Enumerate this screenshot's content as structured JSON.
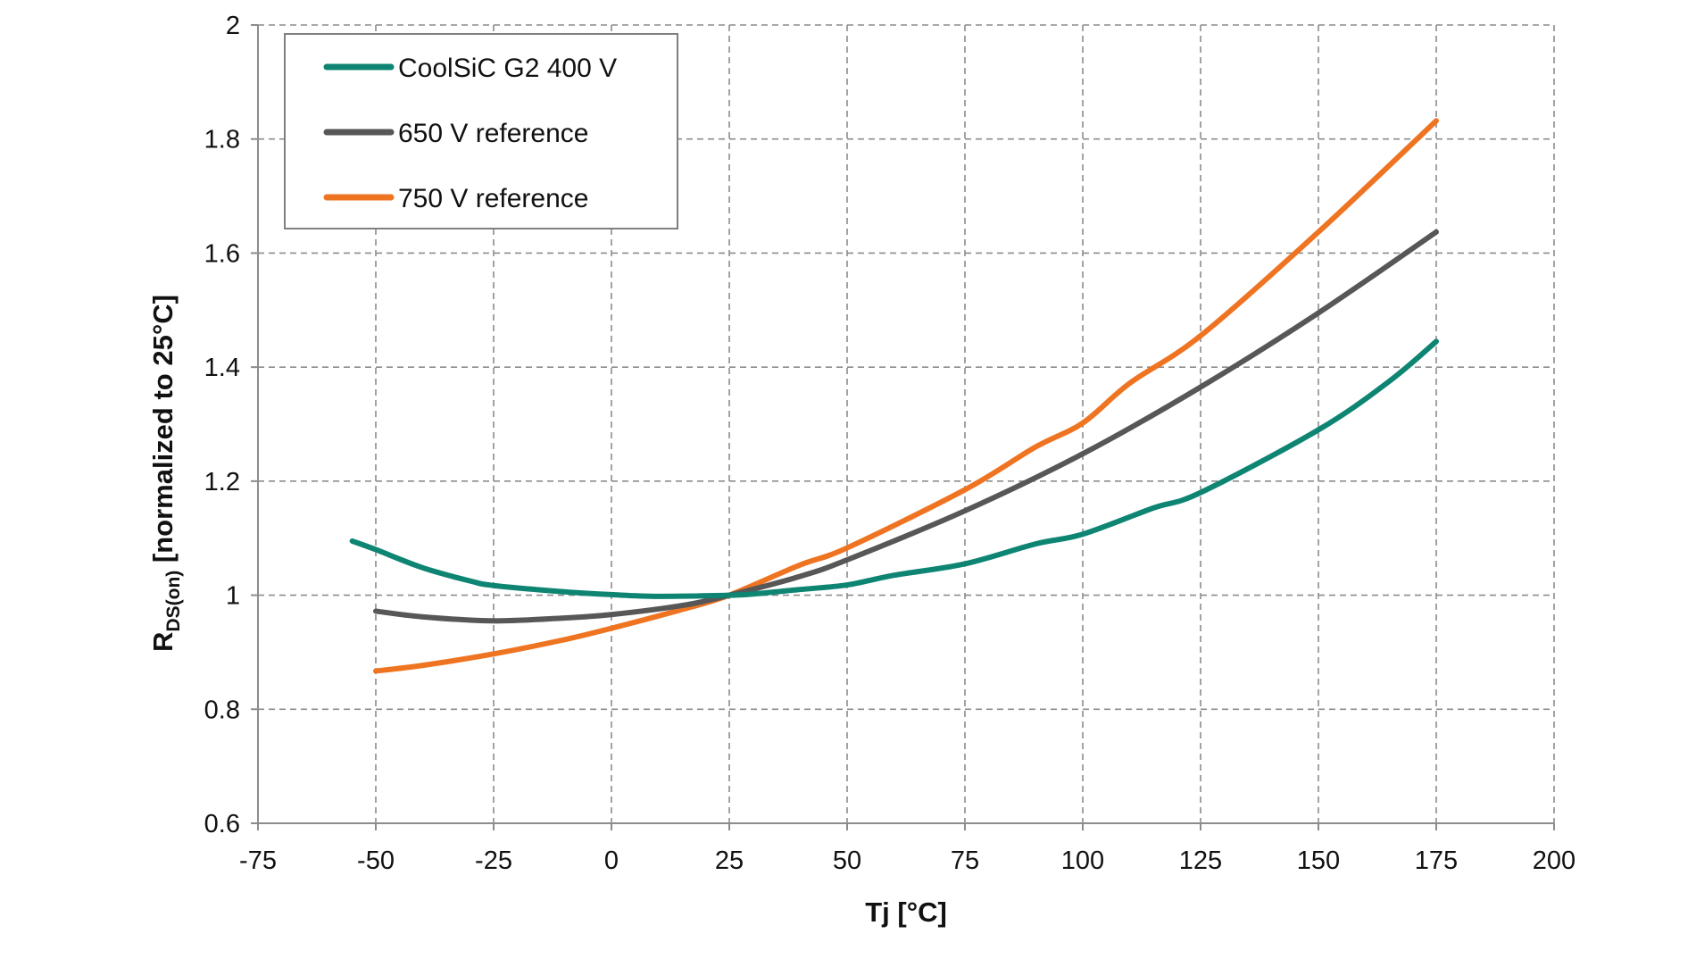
{
  "chart_data": {
    "type": "line",
    "title": "",
    "xlabel": "Tj [°C]",
    "ylabel_main": "R",
    "ylabel_sub": "DS(on)",
    "ylabel_rest": " [normalized to 25°C]",
    "xlim": [
      -75,
      200
    ],
    "ylim": [
      0.6,
      2
    ],
    "x_ticks": [
      -75,
      -50,
      -25,
      0,
      25,
      50,
      75,
      100,
      125,
      150,
      175,
      200
    ],
    "y_ticks": [
      0.6,
      0.8,
      1,
      1.2,
      1.4,
      1.6,
      1.8,
      2
    ],
    "x_tick_labels": [
      "-75",
      "-50",
      "-25",
      "0",
      "25",
      "50",
      "75",
      "100",
      "125",
      "150",
      "175",
      "200"
    ],
    "y_tick_labels": [
      "0.6",
      "0.8",
      "1",
      "1.2",
      "1.4",
      "1.6",
      "1.8",
      "2"
    ],
    "grid": true,
    "legend_position": "top-left",
    "series": [
      {
        "name": "CoolSiC G2 400 V",
        "color": "#0e8573",
        "x": [
          -55,
          -50,
          -40,
          -30,
          -25,
          -10,
          0,
          10,
          25,
          30,
          40,
          50,
          60,
          75,
          90,
          100,
          115,
          125,
          150,
          165,
          175
        ],
        "y": [
          1.095,
          1.08,
          1.048,
          1.025,
          1.017,
          1.006,
          1.001,
          0.998,
          1.0,
          1.002,
          1.01,
          1.018,
          1.035,
          1.055,
          1.09,
          1.107,
          1.153,
          1.18,
          1.29,
          1.375,
          1.445
        ]
      },
      {
        "name": "650 V reference",
        "color": "#575757",
        "x": [
          -50,
          -40,
          -25,
          -10,
          0,
          15,
          25,
          40,
          50,
          75,
          100,
          125,
          150,
          175
        ],
        "y": [
          0.972,
          0.962,
          0.955,
          0.96,
          0.966,
          0.982,
          1.0,
          1.033,
          1.062,
          1.148,
          1.248,
          1.365,
          1.495,
          1.637
        ]
      },
      {
        "name": "750 V reference",
        "color": "#ef7421",
        "x": [
          -50,
          -40,
          -25,
          -10,
          0,
          15,
          25,
          40,
          50,
          75,
          90,
          100,
          110,
          125,
          150,
          175
        ],
        "y": [
          0.867,
          0.877,
          0.897,
          0.922,
          0.942,
          0.975,
          1.0,
          1.053,
          1.083,
          1.185,
          1.26,
          1.302,
          1.372,
          1.455,
          1.637,
          1.832
        ]
      }
    ]
  }
}
